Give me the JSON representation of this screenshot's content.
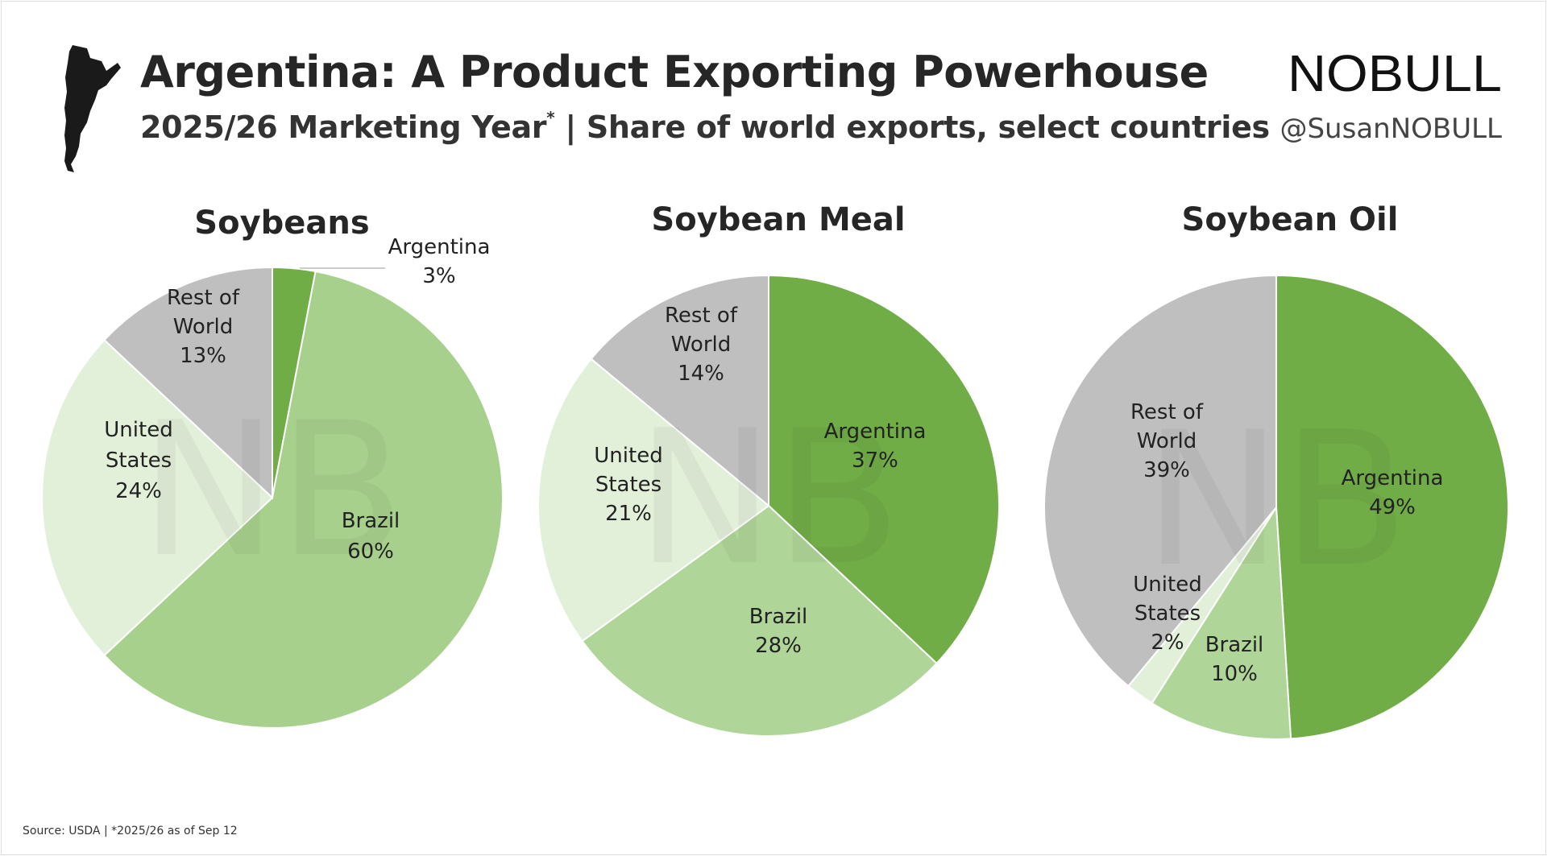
{
  "header": {
    "title": "Argentina: A Product Exporting Powerhouse",
    "subtitle": "2025/26 Marketing Year",
    "subtitle_mark": "*",
    "subtitle_rest": " | Share of world exports, select countries"
  },
  "brand": {
    "logo_text": "NOBULL",
    "handle": "@SusanNOBULL",
    "watermark_text": "NB"
  },
  "footer": {
    "source": "Source: USDA | *2025/26 as of Sep 12"
  },
  "colors": {
    "argentina": "#71ad47",
    "brazil_soybeans": "#a8d08d",
    "brazil_meal": "#b0d598",
    "brazil_oil": "#b0d598",
    "united_states": "#e2efd9",
    "rest_of_world": "#bfbfbf",
    "map": "#1a1a1a"
  },
  "chart_data": [
    {
      "type": "pie",
      "title": "Soybeans",
      "slices": [
        {
          "name": "Argentina",
          "value": 3,
          "label": [
            "Argentina",
            "3%"
          ],
          "color_key": "argentina"
        },
        {
          "name": "Brazil",
          "value": 60,
          "label": [
            "Brazil",
            "60%"
          ],
          "color_key": "brazil_soybeans"
        },
        {
          "name": "United States",
          "value": 24,
          "label": [
            "United",
            "States",
            "24%"
          ],
          "color_key": "united_states"
        },
        {
          "name": "Rest of World",
          "value": 13,
          "label": [
            "Rest of",
            "World",
            "13%"
          ],
          "color_key": "rest_of_world"
        }
      ]
    },
    {
      "type": "pie",
      "title": "Soybean Meal",
      "slices": [
        {
          "name": "Argentina",
          "value": 37,
          "label": [
            "Argentina",
            "37%"
          ],
          "color_key": "argentina"
        },
        {
          "name": "Brazil",
          "value": 28,
          "label": [
            "Brazil",
            "28%"
          ],
          "color_key": "brazil_meal"
        },
        {
          "name": "United States",
          "value": 21,
          "label": [
            "United",
            "States",
            "21%"
          ],
          "color_key": "united_states"
        },
        {
          "name": "Rest of World",
          "value": 14,
          "label": [
            "Rest of",
            "World",
            "14%"
          ],
          "color_key": "rest_of_world"
        }
      ]
    },
    {
      "type": "pie",
      "title": "Soybean Oil",
      "slices": [
        {
          "name": "Argentina",
          "value": 49,
          "label": [
            "Argentina",
            "49%"
          ],
          "color_key": "argentina"
        },
        {
          "name": "Brazil",
          "value": 10,
          "label": [
            "Brazil",
            "10%"
          ],
          "color_key": "brazil_oil"
        },
        {
          "name": "United States",
          "value": 2,
          "label": [
            "United",
            "States",
            "2%"
          ],
          "color_key": "united_states"
        },
        {
          "name": "Rest of World",
          "value": 39,
          "label": [
            "Rest of",
            "World",
            "39%"
          ],
          "color_key": "rest_of_world"
        }
      ]
    }
  ]
}
